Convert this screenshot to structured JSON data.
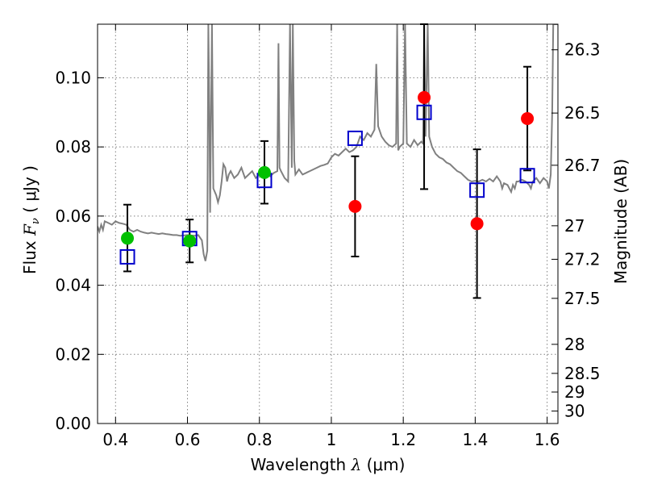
{
  "chart_data": {
    "type": "scatter",
    "xlabel_main": "Wavelength",
    "xlabel_symbol": "λ",
    "xlabel_unit": "(μm)",
    "ylabel_main": "Flux",
    "ylabel_symbol": "F",
    "ylabel_subscript": "ν",
    "ylabel_unit": "( μJy )",
    "y2label": "Magnitude (AB)",
    "xlim": [
      0.35,
      1.63
    ],
    "ylim": [
      0.0,
      0.1155
    ],
    "grid": true,
    "x_ticks": [
      {
        "value": 0.4,
        "label": "0.4"
      },
      {
        "value": 0.6,
        "label": "0.6"
      },
      {
        "value": 0.8,
        "label": "0.8"
      },
      {
        "value": 1.0,
        "label": "1"
      },
      {
        "value": 1.2,
        "label": "1.2"
      },
      {
        "value": 1.4,
        "label": "1.4"
      },
      {
        "value": 1.6,
        "label": "1.6"
      }
    ],
    "y_ticks": [
      {
        "value": 0.0,
        "label": "0.00"
      },
      {
        "value": 0.02,
        "label": "0.02"
      },
      {
        "value": 0.04,
        "label": "0.04"
      },
      {
        "value": 0.06,
        "label": "0.06"
      },
      {
        "value": 0.08,
        "label": "0.08"
      },
      {
        "value": 0.1,
        "label": "0.10"
      }
    ],
    "mag_ticks": [
      {
        "flux": 0.1081,
        "label": "26.3"
      },
      {
        "flux": 0.0898,
        "label": "26.5"
      },
      {
        "flux": 0.0747,
        "label": "26.7"
      },
      {
        "flux": 0.0572,
        "label": "27"
      },
      {
        "flux": 0.0475,
        "label": "27.2"
      },
      {
        "flux": 0.0362,
        "label": "27.5"
      },
      {
        "flux": 0.0229,
        "label": "28"
      },
      {
        "flux": 0.0145,
        "label": "28.5"
      },
      {
        "flux": 0.0091,
        "label": "29"
      },
      {
        "flux": 0.0036,
        "label": "30"
      }
    ],
    "colors": {
      "spectrum": "#808080",
      "detected": "#00c000",
      "observed": "#ff0000",
      "model": "#0000cc",
      "errorbar": "#000000"
    },
    "spectrum": [
      [
        0.35,
        0.057
      ],
      [
        0.355,
        0.0555
      ],
      [
        0.36,
        0.0575
      ],
      [
        0.365,
        0.056
      ],
      [
        0.37,
        0.0585
      ],
      [
        0.38,
        0.058
      ],
      [
        0.39,
        0.0575
      ],
      [
        0.4,
        0.0585
      ],
      [
        0.41,
        0.058
      ],
      [
        0.42,
        0.0578
      ],
      [
        0.43,
        0.0575
      ],
      [
        0.44,
        0.056
      ],
      [
        0.45,
        0.0555
      ],
      [
        0.46,
        0.056
      ],
      [
        0.47,
        0.0555
      ],
      [
        0.48,
        0.0552
      ],
      [
        0.49,
        0.055
      ],
      [
        0.5,
        0.0552
      ],
      [
        0.51,
        0.055
      ],
      [
        0.52,
        0.0548
      ],
      [
        0.53,
        0.055
      ],
      [
        0.54,
        0.0548
      ],
      [
        0.55,
        0.0547
      ],
      [
        0.56,
        0.0545
      ],
      [
        0.57,
        0.0545
      ],
      [
        0.58,
        0.0543
      ],
      [
        0.59,
        0.0544
      ],
      [
        0.6,
        0.0545
      ],
      [
        0.61,
        0.0544
      ],
      [
        0.62,
        0.0543
      ],
      [
        0.63,
        0.0545
      ],
      [
        0.64,
        0.053
      ],
      [
        0.645,
        0.049
      ],
      [
        0.65,
        0.047
      ],
      [
        0.655,
        0.05
      ],
      [
        0.658,
        0.1155
      ],
      [
        0.661,
        0.09
      ],
      [
        0.663,
        0.061
      ],
      [
        0.668,
        0.1155
      ],
      [
        0.672,
        0.068
      ],
      [
        0.68,
        0.066
      ],
      [
        0.685,
        0.064
      ],
      [
        0.69,
        0.066
      ],
      [
        0.695,
        0.07
      ],
      [
        0.7,
        0.075
      ],
      [
        0.705,
        0.074
      ],
      [
        0.71,
        0.07
      ],
      [
        0.715,
        0.072
      ],
      [
        0.72,
        0.073
      ],
      [
        0.73,
        0.071
      ],
      [
        0.74,
        0.072
      ],
      [
        0.75,
        0.074
      ],
      [
        0.76,
        0.071
      ],
      [
        0.77,
        0.072
      ],
      [
        0.78,
        0.073
      ],
      [
        0.79,
        0.071
      ],
      [
        0.8,
        0.072
      ],
      [
        0.81,
        0.073
      ],
      [
        0.82,
        0.072
      ],
      [
        0.83,
        0.0715
      ],
      [
        0.84,
        0.0725
      ],
      [
        0.85,
        0.073
      ],
      [
        0.853,
        0.11
      ],
      [
        0.856,
        0.074
      ],
      [
        0.86,
        0.073
      ],
      [
        0.87,
        0.071
      ],
      [
        0.88,
        0.07
      ],
      [
        0.885,
        0.1155
      ],
      [
        0.89,
        0.074
      ],
      [
        0.893,
        0.1155
      ],
      [
        0.897,
        0.076
      ],
      [
        0.9,
        0.072
      ],
      [
        0.91,
        0.0735
      ],
      [
        0.92,
        0.072
      ],
      [
        0.93,
        0.0725
      ],
      [
        0.94,
        0.073
      ],
      [
        0.95,
        0.0735
      ],
      [
        0.96,
        0.074
      ],
      [
        0.97,
        0.0745
      ],
      [
        0.98,
        0.0748
      ],
      [
        0.99,
        0.0752
      ],
      [
        1.0,
        0.077
      ],
      [
        1.01,
        0.078
      ],
      [
        1.02,
        0.0775
      ],
      [
        1.03,
        0.0785
      ],
      [
        1.04,
        0.0795
      ],
      [
        1.05,
        0.0785
      ],
      [
        1.06,
        0.079
      ],
      [
        1.07,
        0.08
      ],
      [
        1.08,
        0.083
      ],
      [
        1.09,
        0.082
      ],
      [
        1.1,
        0.084
      ],
      [
        1.11,
        0.083
      ],
      [
        1.12,
        0.085
      ],
      [
        1.125,
        0.104
      ],
      [
        1.13,
        0.086
      ],
      [
        1.14,
        0.083
      ],
      [
        1.15,
        0.0815
      ],
      [
        1.16,
        0.0805
      ],
      [
        1.17,
        0.08
      ],
      [
        1.18,
        0.081
      ],
      [
        1.183,
        0.1155
      ],
      [
        1.186,
        0.079
      ],
      [
        1.19,
        0.08
      ],
      [
        1.2,
        0.081
      ],
      [
        1.205,
        0.1155
      ],
      [
        1.21,
        0.081
      ],
      [
        1.22,
        0.08
      ],
      [
        1.23,
        0.082
      ],
      [
        1.24,
        0.0805
      ],
      [
        1.25,
        0.0815
      ],
      [
        1.255,
        0.081
      ],
      [
        1.258,
        0.1155
      ],
      [
        1.262,
        0.083
      ],
      [
        1.268,
        0.1155
      ],
      [
        1.272,
        0.083
      ],
      [
        1.28,
        0.08
      ],
      [
        1.29,
        0.078
      ],
      [
        1.3,
        0.077
      ],
      [
        1.31,
        0.0765
      ],
      [
        1.32,
        0.0755
      ],
      [
        1.33,
        0.075
      ],
      [
        1.34,
        0.074
      ],
      [
        1.35,
        0.073
      ],
      [
        1.36,
        0.0725
      ],
      [
        1.37,
        0.0715
      ],
      [
        1.38,
        0.0705
      ],
      [
        1.39,
        0.07
      ],
      [
        1.4,
        0.0702
      ],
      [
        1.41,
        0.07
      ],
      [
        1.42,
        0.0705
      ],
      [
        1.43,
        0.07
      ],
      [
        1.44,
        0.0708
      ],
      [
        1.45,
        0.07
      ],
      [
        1.46,
        0.0715
      ],
      [
        1.47,
        0.07
      ],
      [
        1.475,
        0.068
      ],
      [
        1.48,
        0.0695
      ],
      [
        1.49,
        0.069
      ],
      [
        1.5,
        0.067
      ],
      [
        1.505,
        0.069
      ],
      [
        1.51,
        0.068
      ],
      [
        1.515,
        0.07
      ],
      [
        1.52,
        0.07
      ],
      [
        1.53,
        0.0705
      ],
      [
        1.54,
        0.07
      ],
      [
        1.55,
        0.069
      ],
      [
        1.555,
        0.068
      ],
      [
        1.56,
        0.07
      ],
      [
        1.57,
        0.071
      ],
      [
        1.58,
        0.0695
      ],
      [
        1.59,
        0.071
      ],
      [
        1.6,
        0.07
      ],
      [
        1.605,
        0.068
      ],
      [
        1.61,
        0.072
      ],
      [
        1.614,
        0.09
      ],
      [
        1.617,
        0.1155
      ],
      [
        1.621,
        0.1155
      ],
      [
        1.625,
        0.1155
      ],
      [
        1.63,
        0.1155
      ]
    ],
    "model_points": [
      {
        "x": 0.433,
        "y": 0.0482
      },
      {
        "x": 0.606,
        "y": 0.0535
      },
      {
        "x": 0.814,
        "y": 0.0703
      },
      {
        "x": 1.066,
        "y": 0.0825
      },
      {
        "x": 1.258,
        "y": 0.09
      },
      {
        "x": 1.405,
        "y": 0.0675
      },
      {
        "x": 1.545,
        "y": 0.0717
      }
    ],
    "detected_points": [
      {
        "x": 0.433,
        "y": 0.0536,
        "err_lo": 0.0096,
        "err_hi": 0.0097
      },
      {
        "x": 0.606,
        "y": 0.0528,
        "err_lo": 0.0062,
        "err_hi": 0.0062
      },
      {
        "x": 0.814,
        "y": 0.0726,
        "err_lo": 0.009,
        "err_hi": 0.0091
      }
    ],
    "observed_points": [
      {
        "x": 1.066,
        "y": 0.0628,
        "err_lo": 0.0145,
        "err_hi": 0.0145
      },
      {
        "x": 1.258,
        "y": 0.0943,
        "err_lo": 0.0265,
        "err_hi": 0.0212
      },
      {
        "x": 1.405,
        "y": 0.0578,
        "err_lo": 0.0215,
        "err_hi": 0.0215
      },
      {
        "x": 1.545,
        "y": 0.0882,
        "err_lo": 0.015,
        "err_hi": 0.015
      }
    ]
  }
}
